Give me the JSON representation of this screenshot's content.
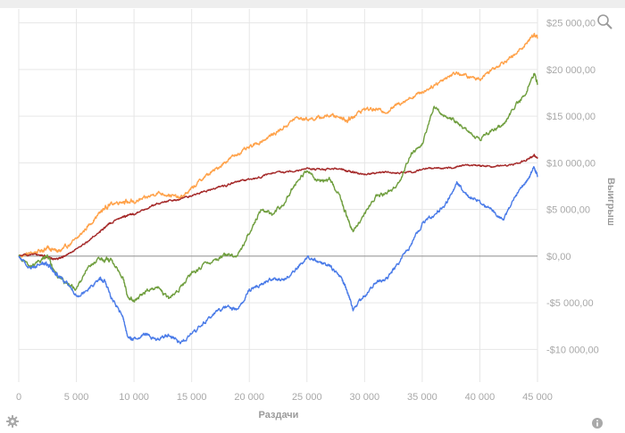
{
  "chart_data": {
    "type": "line",
    "xlabel": "Раздачи",
    "ylabel": "Выигрыш",
    "xlim": [
      0,
      45000
    ],
    "ylim": [
      -13500,
      26500
    ],
    "grid": true,
    "legend": "none",
    "x_ticks": [
      {
        "value": 0,
        "label": "0"
      },
      {
        "value": 5000,
        "label": "5 000"
      },
      {
        "value": 10000,
        "label": "10 000"
      },
      {
        "value": 15000,
        "label": "15 000"
      },
      {
        "value": 20000,
        "label": "20 000"
      },
      {
        "value": 25000,
        "label": "25 000"
      },
      {
        "value": 30000,
        "label": "30 000"
      },
      {
        "value": 35000,
        "label": "35 000"
      },
      {
        "value": 40000,
        "label": "40 000"
      },
      {
        "value": 45000,
        "label": "45 000"
      }
    ],
    "y_ticks": [
      {
        "value": 25000,
        "label": "$25 000,00"
      },
      {
        "value": 20000,
        "label": "$20 000,00"
      },
      {
        "value": 15000,
        "label": "$15 000,00"
      },
      {
        "value": 10000,
        "label": "$10 000,00"
      },
      {
        "value": 5000,
        "label": "$5 000,00"
      },
      {
        "value": 0,
        "label": "$0,00"
      },
      {
        "value": -5000,
        "label": "-$5 000,00"
      },
      {
        "value": -10000,
        "label": "-$10 000,00"
      }
    ],
    "x": [
      0,
      1000,
      2000,
      2500,
      3000,
      3500,
      4000,
      5000,
      6000,
      7000,
      7500,
      8000,
      9000,
      9500,
      10000,
      11000,
      12000,
      13000,
      14000,
      15000,
      16000,
      17000,
      18000,
      19000,
      20000,
      21000,
      22000,
      23000,
      24000,
      25000,
      26000,
      27000,
      28000,
      28500,
      29000,
      30000,
      31000,
      32000,
      33000,
      34000,
      35000,
      36000,
      37000,
      38000,
      39000,
      40000,
      41000,
      42000,
      43000,
      44000,
      44700,
      45000
    ],
    "series": [
      {
        "color": "#ffa24a",
        "values": [
          0,
          300,
          600,
          900,
          700,
          500,
          900,
          1800,
          3200,
          4600,
          5200,
          5600,
          5900,
          5800,
          5800,
          6200,
          6800,
          6600,
          6200,
          7200,
          8400,
          9200,
          10200,
          11000,
          11600,
          12300,
          13000,
          13800,
          14800,
          14700,
          14800,
          15100,
          14900,
          14500,
          15000,
          15800,
          15700,
          15500,
          16400,
          17000,
          17600,
          18300,
          19100,
          19700,
          19200,
          19000,
          20000,
          20800,
          21500,
          22800,
          23800,
          23400
        ]
      },
      {
        "color": "#a52a2a",
        "values": [
          0,
          200,
          100,
          -100,
          -300,
          -200,
          0,
          700,
          1600,
          2600,
          3100,
          3600,
          4200,
          4400,
          4500,
          5100,
          5600,
          5900,
          6100,
          6500,
          6900,
          7300,
          7600,
          8000,
          8200,
          8500,
          8900,
          9000,
          9200,
          9400,
          9300,
          9300,
          9400,
          9100,
          9000,
          8800,
          8900,
          9000,
          8900,
          9000,
          9300,
          9500,
          9400,
          9600,
          9800,
          9700,
          9600,
          9700,
          9900,
          10200,
          10800,
          10600
        ]
      },
      {
        "color": "#6f9e3e",
        "values": [
          0,
          -1200,
          -400,
          200,
          -1500,
          -2200,
          -2800,
          -3500,
          -1200,
          -400,
          -400,
          -400,
          -2200,
          -4500,
          -4800,
          -3800,
          -3200,
          -4600,
          -3400,
          -1900,
          -1000,
          -400,
          200,
          0,
          2500,
          5000,
          4500,
          5700,
          7800,
          9200,
          8000,
          8300,
          6000,
          4000,
          2700,
          4500,
          6500,
          6800,
          7900,
          11000,
          12000,
          16000,
          15000,
          14500,
          13300,
          12500,
          13500,
          14000,
          16000,
          17500,
          19700,
          18500
        ]
      },
      {
        "color": "#4a7be8",
        "values": [
          0,
          -1300,
          -700,
          -900,
          -1600,
          -2100,
          -2600,
          -4200,
          -3500,
          -2400,
          -2800,
          -4400,
          -6400,
          -8800,
          -8900,
          -8300,
          -9000,
          -8400,
          -9300,
          -8300,
          -7300,
          -6000,
          -5500,
          -5700,
          -3600,
          -3000,
          -2400,
          -2500,
          -1500,
          -100,
          -600,
          -1000,
          -2300,
          -3800,
          -5700,
          -4300,
          -2800,
          -2300,
          -600,
          1100,
          3400,
          4400,
          5500,
          7900,
          6400,
          5800,
          5000,
          3800,
          6200,
          7900,
          9500,
          8600
        ]
      }
    ]
  },
  "controls": {
    "zoom_icon": "magnifier-icon",
    "settings_icon": "gear-icon",
    "info_icon": "info-icon"
  }
}
